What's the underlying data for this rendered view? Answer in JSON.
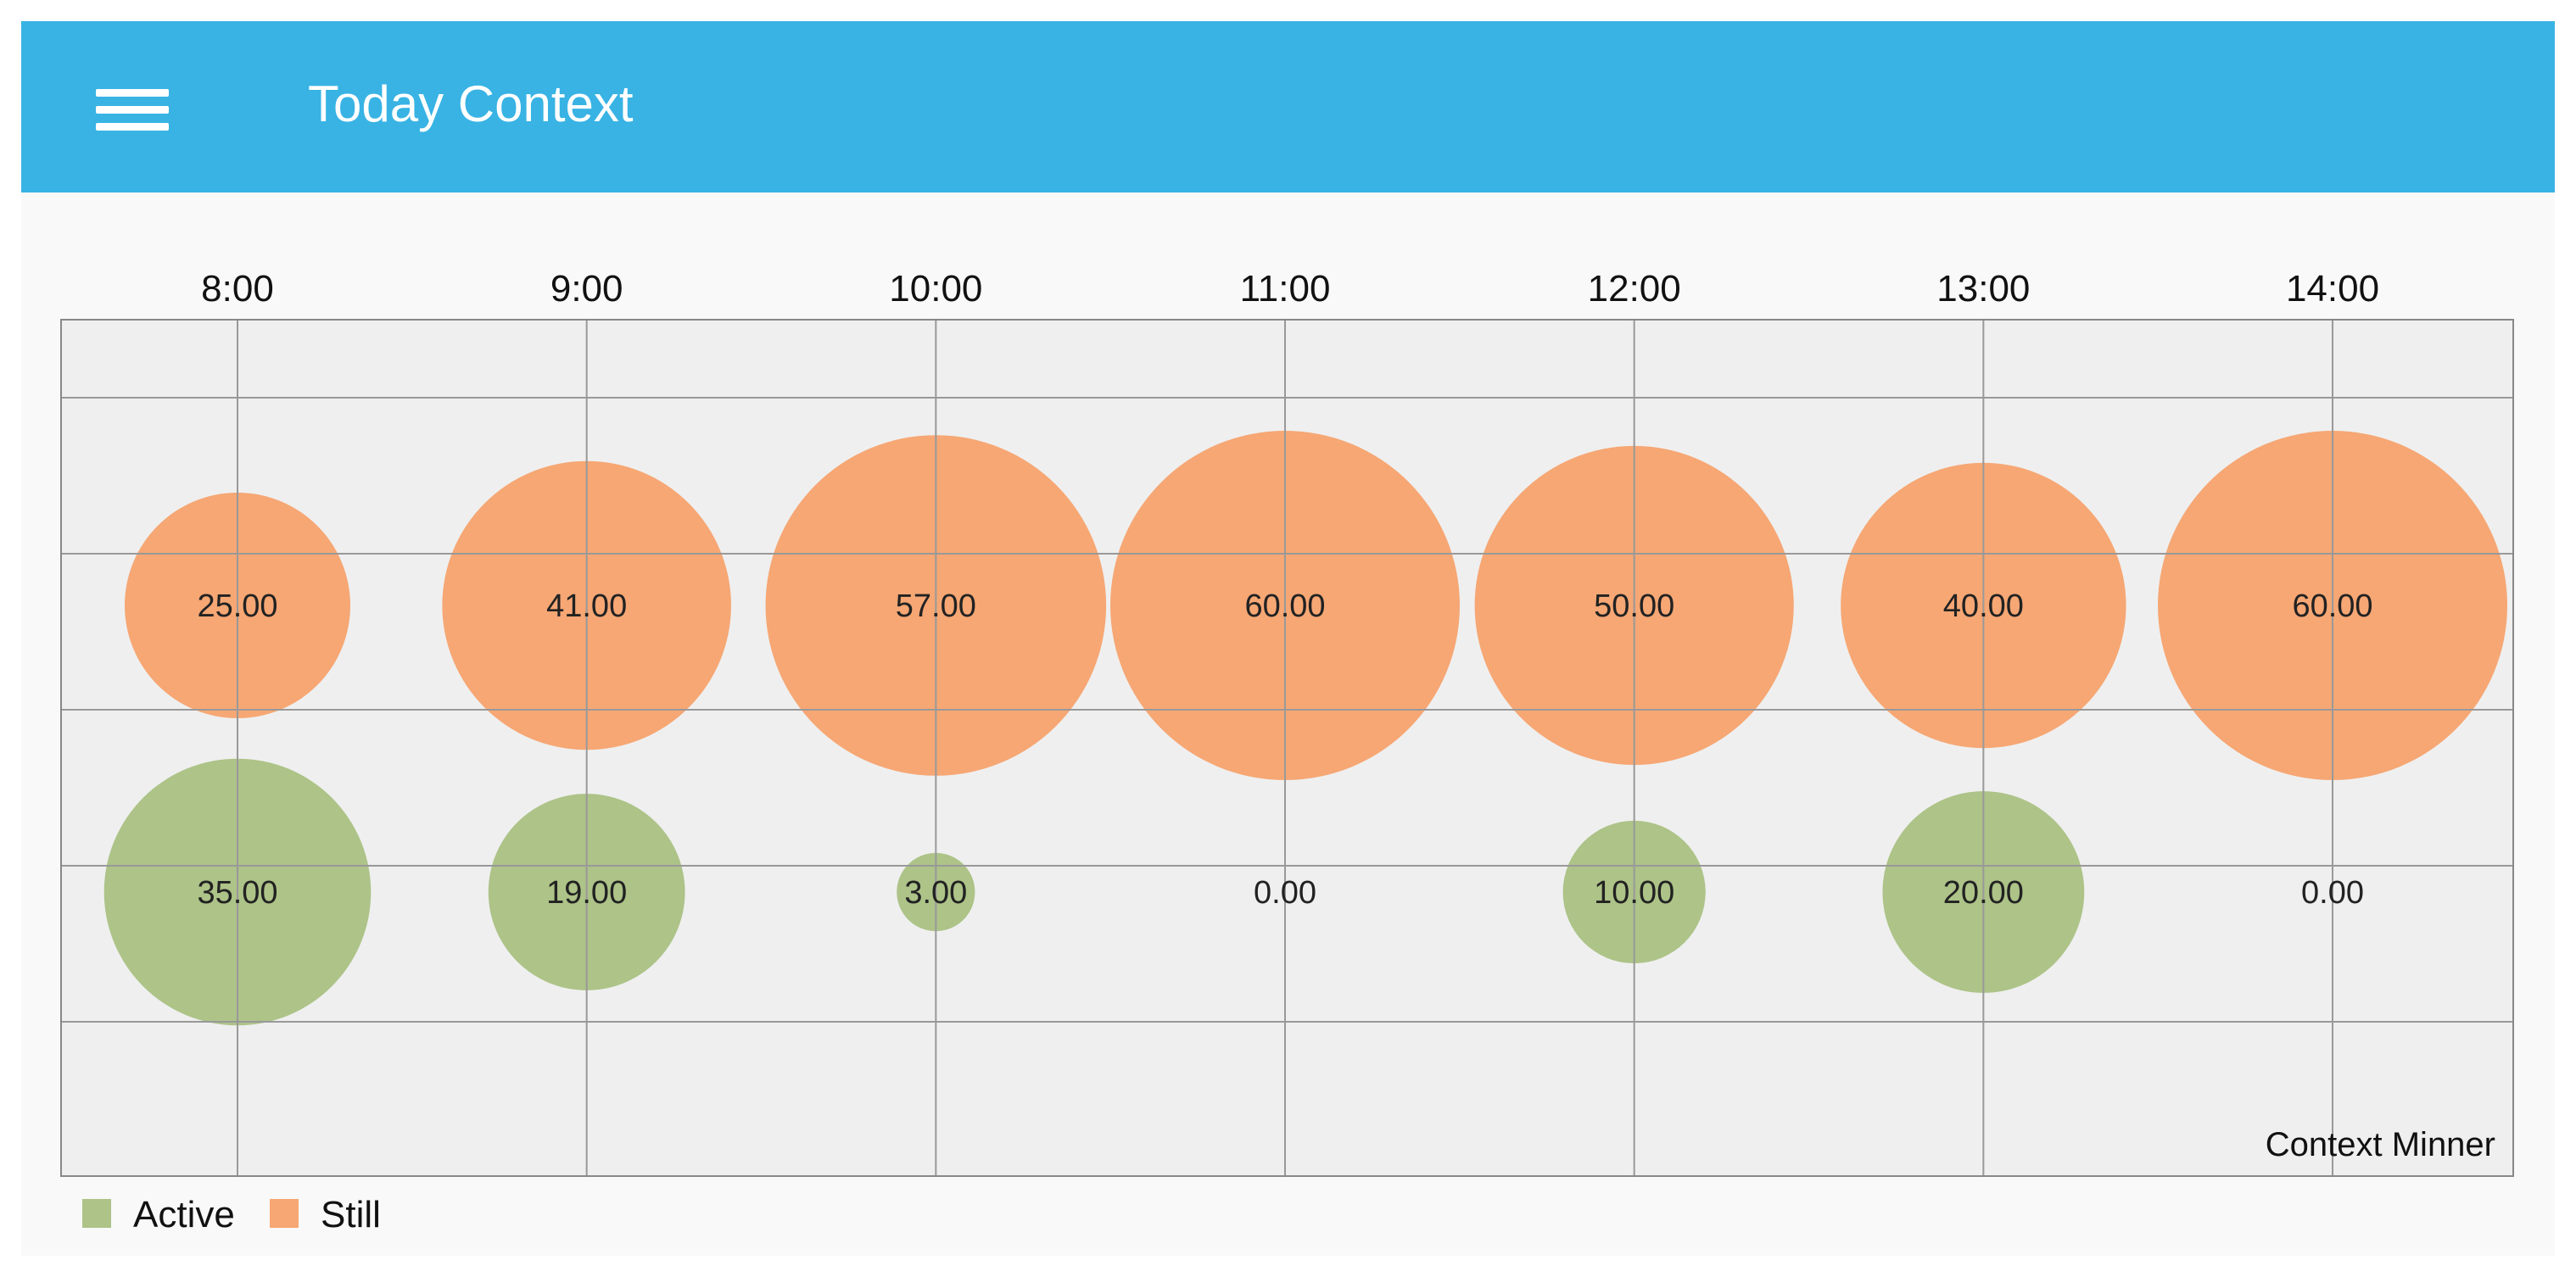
{
  "header": {
    "title": "Today Context",
    "menu_icon": "hamburger-menu-icon"
  },
  "colors": {
    "app_bar": "#38b3e4",
    "active": "#adc388",
    "still": "#f6a774",
    "plot_background": "#efefef",
    "grid": "#999999"
  },
  "chart_data": {
    "type": "bubble",
    "categories": [
      "8:00",
      "9:00",
      "10:00",
      "11:00",
      "12:00",
      "13:00",
      "14:00"
    ],
    "series": [
      {
        "name": "Still",
        "values": [
          25.0,
          41.0,
          57.0,
          60.0,
          50.0,
          40.0,
          60.0
        ],
        "labels": [
          "25.00",
          "41.00",
          "57.00",
          "60.00",
          "50.00",
          "40.00",
          "60.00"
        ]
      },
      {
        "name": "Active",
        "values": [
          35.0,
          19.0,
          3.0,
          0.0,
          10.0,
          20.0,
          0.0
        ],
        "labels": [
          "35.00",
          "19.00",
          "3.00",
          "0.00",
          "10.00",
          "20.00",
          "0.00"
        ]
      }
    ],
    "x_axis_position": "top",
    "grid": true,
    "legend": "bottom-left",
    "annotation": "Context Minner"
  }
}
